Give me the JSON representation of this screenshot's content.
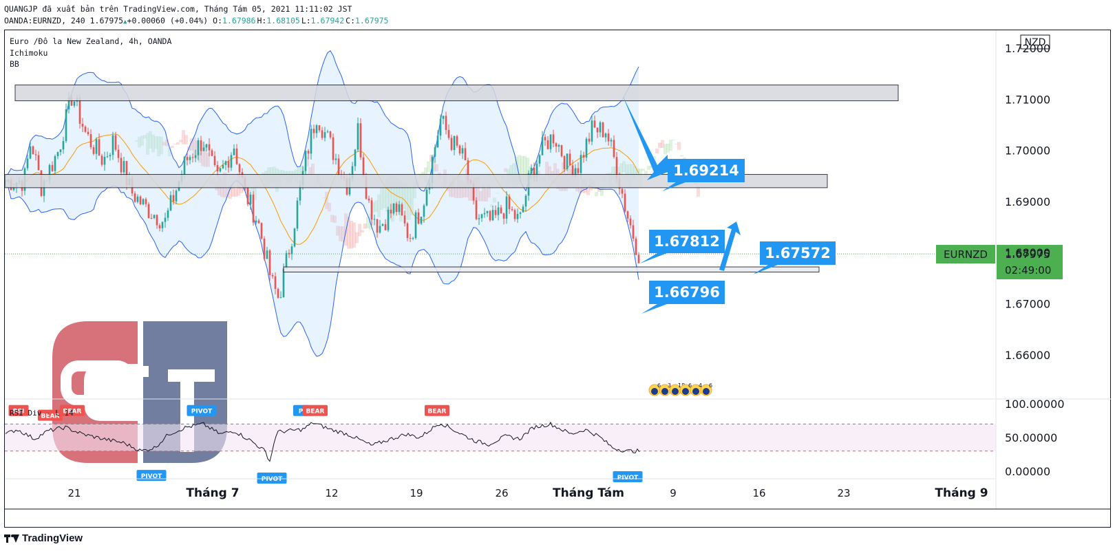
{
  "header": {
    "line1": "QUANGJP đã xuất bản trên TradingView.com, Tháng Tám 05, 2021 11:11:02 JST",
    "symbol_line": "OANDA:EURNZD, 240 1.67975",
    "change": "+0.00060 (+0.04%)",
    "ohlc": [
      {
        "k": "O:",
        "v": "1.67986"
      },
      {
        "k": "H:",
        "v": "1.68105"
      },
      {
        "k": "L:",
        "v": "1.67942"
      },
      {
        "k": "C:",
        "v": "1.67975"
      }
    ]
  },
  "legend": {
    "title": "Euro /Đô la New Zealand, 4h, OANDA",
    "ind1": "Ichimoku",
    "ind2": "BB"
  },
  "colors": {
    "up": "#26a69a",
    "down": "#ef5350",
    "callout": "#2196f3",
    "bb": "#2962ff",
    "last_price": "#4caf50",
    "rsi_line": "#131722",
    "pivot": "#2196f3",
    "bear": "#ef5350"
  },
  "chart_data": {
    "type": "candlestick",
    "symbol": "EURNZD",
    "currency": "NZD",
    "timeframe": "4h",
    "y_ticks": [
      "1.72000",
      "1.71000",
      "1.70000",
      "1.69000",
      "1.68000",
      "1.67000",
      "1.66000"
    ],
    "ylim": [
      1.6515,
      1.7235
    ],
    "x_ticks": [
      "21",
      "Tháng 7",
      "12",
      "19",
      "26",
      "Tháng Tám",
      "9",
      "16",
      "23",
      "Tháng 9"
    ],
    "last_price": {
      "label": "EURNZD",
      "value": "1.67975",
      "countdown": "02:49:00"
    },
    "zones": [
      {
        "low": 1.7097,
        "high": 1.7128
      },
      {
        "low": 1.6927,
        "high": 1.6953
      },
      {
        "low": 1.6762,
        "high": 1.6772
      }
    ],
    "callouts": [
      "1.69214",
      "1.67812",
      "1.67572",
      "1.66796"
    ],
    "candle_path": [
      [
        1.694,
        35
      ],
      [
        1.702,
        45
      ],
      [
        1.693,
        60
      ],
      [
        1.7,
        85
      ],
      [
        1.711,
        105
      ],
      [
        1.703,
        125
      ],
      [
        1.698,
        150
      ],
      [
        1.702,
        165
      ],
      [
        1.692,
        190
      ],
      [
        1.689,
        210
      ],
      [
        1.686,
        240
      ],
      [
        1.698,
        270
      ],
      [
        1.702,
        295
      ],
      [
        1.694,
        315
      ],
      [
        1.701,
        340
      ],
      [
        1.692,
        355
      ],
      [
        1.686,
        375
      ],
      [
        1.674,
        395
      ],
      [
        1.671,
        405
      ],
      [
        1.684,
        425
      ],
      [
        1.699,
        445
      ],
      [
        1.707,
        460
      ],
      [
        1.701,
        480
      ],
      [
        1.693,
        505
      ],
      [
        1.704,
        520
      ],
      [
        1.69,
        535
      ],
      [
        1.685,
        550
      ],
      [
        1.689,
        575
      ],
      [
        1.683,
        595
      ],
      [
        1.69,
        615
      ],
      [
        1.706,
        640
      ],
      [
        1.702,
        655
      ],
      [
        1.698,
        675
      ],
      [
        1.687,
        690
      ],
      [
        1.686,
        715
      ],
      [
        1.689,
        735
      ],
      [
        1.686,
        755
      ],
      [
        1.695,
        770
      ],
      [
        1.701,
        790
      ],
      [
        1.703,
        805
      ],
      [
        1.697,
        825
      ],
      [
        1.697,
        840
      ],
      [
        1.704,
        860
      ],
      [
        1.704,
        880
      ],
      [
        1.697,
        895
      ],
      [
        1.688,
        910
      ],
      [
        1.679,
        930
      ]
    ],
    "rsi": {
      "label": "RSI Div - L 14",
      "ticks": [
        "100.00000",
        "50.00000",
        "0.00000"
      ],
      "ylim": [
        -10,
        105
      ],
      "upper": 70,
      "lower": 30,
      "path": [
        [
          55,
          8
        ],
        [
          62,
          25
        ],
        [
          48,
          50
        ],
        [
          60,
          70
        ],
        [
          65,
          95
        ],
        [
          55,
          120
        ],
        [
          48,
          150
        ],
        [
          42,
          180
        ],
        [
          30,
          205
        ],
        [
          35,
          225
        ],
        [
          55,
          245
        ],
        [
          65,
          270
        ],
        [
          70,
          295
        ],
        [
          55,
          320
        ],
        [
          60,
          340
        ],
        [
          45,
          365
        ],
        [
          30,
          385
        ],
        [
          15,
          392
        ],
        [
          58,
          402
        ],
        [
          60,
          420
        ],
        [
          62,
          440
        ],
        [
          72,
          455
        ],
        [
          62,
          480
        ],
        [
          55,
          505
        ],
        [
          48,
          520
        ],
        [
          38,
          540
        ],
        [
          47,
          565
        ],
        [
          55,
          590
        ],
        [
          50,
          610
        ],
        [
          65,
          630
        ],
        [
          72,
          640
        ],
        [
          58,
          665
        ],
        [
          45,
          690
        ],
        [
          40,
          710
        ],
        [
          52,
          735
        ],
        [
          48,
          755
        ],
        [
          65,
          775
        ],
        [
          70,
          800
        ],
        [
          55,
          830
        ],
        [
          62,
          850
        ],
        [
          52,
          870
        ],
        [
          35,
          890
        ],
        [
          30,
          910
        ],
        [
          30,
          925
        ]
      ],
      "markers": [
        {
          "label": "RSI",
          "kind": "bear",
          "x": 27,
          "v": 90
        },
        {
          "label": "BEAR",
          "kind": "bear",
          "x": 73,
          "v": 83
        },
        {
          "label": "BEAR",
          "kind": "bear",
          "x": 105,
          "v": 90
        },
        {
          "label": "PIVOT",
          "kind": "pivot",
          "x": 293,
          "v": 90
        },
        {
          "label": "P",
          "kind": "pivot",
          "x": 437,
          "v": 90
        },
        {
          "label": "BEAR",
          "kind": "bear",
          "x": 458,
          "v": 90
        },
        {
          "label": "BEAR",
          "kind": "bear",
          "x": 635,
          "v": 90
        },
        {
          "label": "PIVOT",
          "kind": "pivot",
          "x": 220,
          "v": -6
        },
        {
          "label": "PIVOT",
          "kind": "pivot",
          "x": 395,
          "v": -10
        },
        {
          "label": "PIVOT",
          "kind": "pivot",
          "x": 912,
          "v": -8
        }
      ]
    },
    "event_icons": [
      "6",
      "3",
      "18",
      "6",
      "4",
      "6"
    ]
  }
}
